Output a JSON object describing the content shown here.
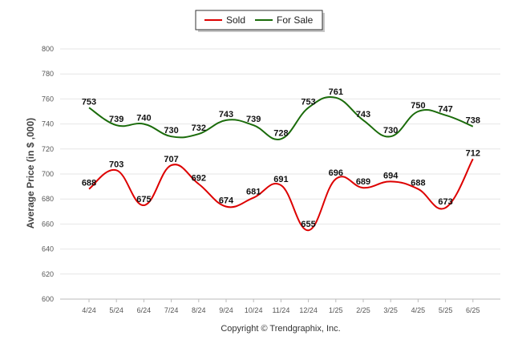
{
  "chart_data": {
    "type": "line",
    "categories": [
      "4/24",
      "5/24",
      "6/24",
      "7/24",
      "8/24",
      "9/24",
      "10/24",
      "11/24",
      "12/24",
      "1/25",
      "2/25",
      "3/25",
      "4/25",
      "5/25",
      "6/25"
    ],
    "series": [
      {
        "name": "Sold",
        "color": "#dd0000",
        "values": [
          688,
          703,
          675,
          707,
          692,
          674,
          681,
          691,
          655,
          696,
          689,
          694,
          688,
          673,
          712
        ]
      },
      {
        "name": "For Sale",
        "color": "#1a6b0a",
        "values": [
          753,
          739,
          740,
          730,
          732,
          743,
          739,
          728,
          753,
          761,
          743,
          730,
          750,
          747,
          738
        ]
      }
    ],
    "ylabel": "Average Price (in $ ,000)",
    "ylim": [
      600,
      800
    ],
    "yticks": [
      600,
      620,
      640,
      660,
      680,
      700,
      720,
      740,
      760,
      780,
      800
    ],
    "grid": true,
    "legend": "top-center",
    "credit": "Copyright © Trendgraphix, Inc."
  }
}
